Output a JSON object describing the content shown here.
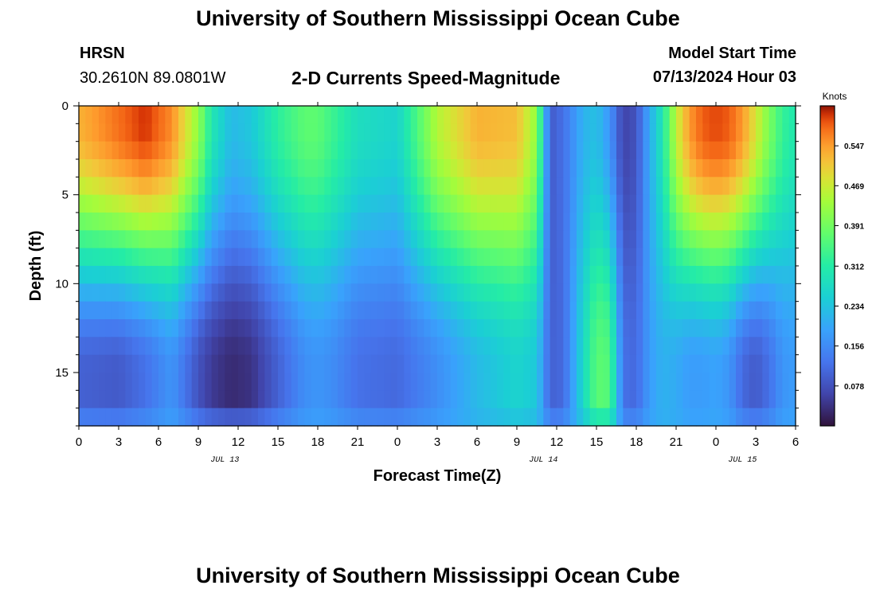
{
  "page": {
    "title_top": "University of Southern Mississippi Ocean Cube",
    "title_bottom": "University of Southern Mississippi Ocean Cube",
    "station": "HRSN",
    "coords": "30.2610N  89.0801W",
    "plot_title": "2-D Currents Speed-Magnitude",
    "model_start_label": "Model Start Time",
    "model_start_value": "07/13/2024 Hour 03"
  },
  "chart_data": {
    "type": "heatmap",
    "title": "2-D Currents Speed-Magnitude",
    "xlabel": "Forecast Time(Z)",
    "ylabel": "Depth (ft)",
    "x_tick_labels": [
      "0",
      "3",
      "6",
      "9",
      "12",
      "15",
      "18",
      "21",
      "0",
      "3",
      "6",
      "9",
      "12",
      "15",
      "18",
      "21",
      "0",
      "3",
      "6"
    ],
    "date_labels": [
      {
        "label": "JUL 13",
        "hour": 11
      },
      {
        "label": "JUL 14",
        "hour": 35
      },
      {
        "label": "JUL 15",
        "hour": 50
      }
    ],
    "x_range_hours": [
      0,
      54
    ],
    "y_ticks": [
      0,
      5,
      10,
      15
    ],
    "y_range_ft": [
      0,
      18
    ],
    "y_inverted": true,
    "colorbar": {
      "label": "Knots",
      "ticks": [
        "0.547",
        "0.469",
        "0.391",
        "0.312",
        "0.234",
        "0.156",
        "0.078"
      ],
      "tick_values": [
        0.547,
        0.469,
        0.391,
        0.312,
        0.234,
        0.156,
        0.078
      ],
      "range": [
        0.0,
        0.625
      ]
    },
    "speed_profile": {
      "hours": [
        0,
        3,
        5,
        7,
        9,
        10,
        11.5,
        13,
        15,
        17,
        18,
        19,
        21,
        24,
        27,
        30,
        33,
        34.5,
        35.5,
        36.5,
        38,
        39,
        40,
        41,
        42,
        43,
        44,
        45,
        46,
        47,
        48,
        49,
        50,
        51,
        52,
        53,
        54
      ],
      "surface_knots": [
        0.53,
        0.58,
        0.61,
        0.56,
        0.42,
        0.3,
        0.22,
        0.24,
        0.32,
        0.37,
        0.37,
        0.34,
        0.28,
        0.26,
        0.45,
        0.53,
        0.52,
        0.42,
        0.09,
        0.12,
        0.21,
        0.23,
        0.17,
        0.06,
        0.08,
        0.2,
        0.3,
        0.46,
        0.55,
        0.59,
        0.6,
        0.59,
        0.55,
        0.48,
        0.4,
        0.33,
        0.3
      ],
      "bottom_knots": [
        0.1,
        0.09,
        0.12,
        0.17,
        0.08,
        0.05,
        0.03,
        0.04,
        0.1,
        0.16,
        0.17,
        0.16,
        0.12,
        0.11,
        0.16,
        0.22,
        0.26,
        0.24,
        0.1,
        0.11,
        0.27,
        0.37,
        0.36,
        0.12,
        0.11,
        0.18,
        0.21,
        0.2,
        0.18,
        0.18,
        0.19,
        0.17,
        0.11,
        0.09,
        0.12,
        0.17,
        0.18
      ]
    }
  }
}
